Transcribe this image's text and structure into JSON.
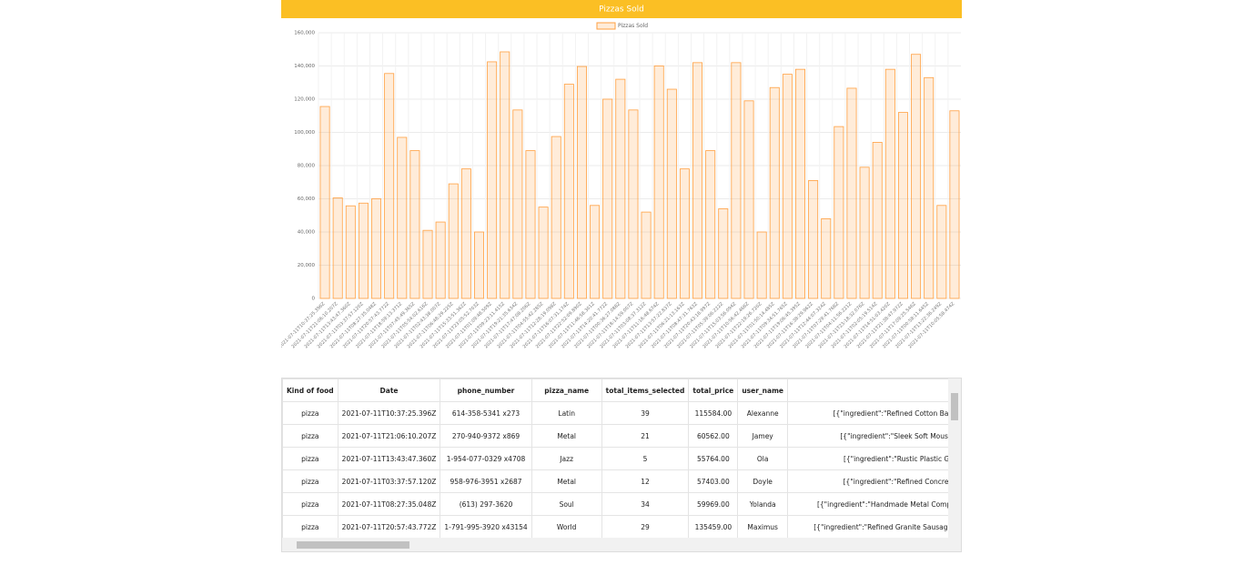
{
  "chart_data": {
    "type": "bar",
    "title": "Pizzas Sold",
    "legend": "Pizzas Sold",
    "color": "rgba(255,159,64,0.2)",
    "border_color": "rgb(255,159,64)",
    "legend_position": "top",
    "grid": true,
    "categories": [
      "2021-07-11T10:37:25.396Z",
      "2021-07-11T21:06:10.207Z",
      "2021-07-11T13:43:47.360Z",
      "2021-07-11T03:37:57.120Z",
      "2021-07-11T08:27:35.048Z",
      "2021-07-11T20:57:43.772Z",
      "2021-07-11T18:59:13.371Z",
      "2021-07-11T07:45:49.365Z",
      "2021-07-11T05:54:02.616Z",
      "2021-07-11T02:43:38.007Z",
      "2021-07-11T06:48:29.225Z",
      "2021-07-11T15:33:51.362Z",
      "2021-07-11T23:05:52.703Z",
      "2021-07-11T01:09:48.509Z",
      "2021-07-11T09:23:11.415Z",
      "2021-07-11T19:21:35.634Z",
      "2021-07-11T17:47:08.206Z",
      "2021-07-11T04:55:42.285Z",
      "2021-07-11T12:28:19.098Z",
      "2021-07-11T16:07:31.174Z",
      "2021-07-11T22:52:09.890Z",
      "2021-07-11T11:46:58.301Z",
      "2021-07-11T14:20:41.772Z",
      "2021-07-11T00:36:27.088Z",
      "2021-07-11T18:14:59.007Z",
      "2021-07-11T03:08:37.312Z",
      "2021-07-11T11:16:48.674Z",
      "2021-07-11T13:57:22.837Z",
      "2021-07-11T06:21:13.163Z",
      "2021-07-11T08:47:31.763Z",
      "2021-07-11T20:43:18.997Z",
      "2021-07-11T05:39:06.222Z",
      "2021-07-11T15:03:56.094Z",
      "2021-07-11T10:56:42.466Z",
      "2021-07-11T22:19:26.720Z",
      "2021-07-11T01:50:14.485Z",
      "2021-07-11T09:34:51.765Z",
      "2021-07-11T19:06:45.395Z",
      "2021-07-11T16:38:29.962Z",
      "2021-07-11T12:44:07.324Z",
      "2021-07-11T07:29:41.768Z",
      "2021-07-11T04:11:56.221Z",
      "2021-07-11T23:18:32.076Z",
      "2021-07-11T02:05:19.514Z",
      "2021-07-11T14:51:03.420Z",
      "2021-07-11T21:38:47.972Z",
      "2021-07-11T17:09:25.546Z",
      "2021-07-11T00:58:11.645Z",
      "2021-07-11T13:22:36.249Z",
      "2021-07-11T10:05:58.474Z"
    ],
    "values": [
      115584,
      60562,
      55764,
      57403,
      59969,
      135459,
      97000,
      89000,
      41000,
      46000,
      69000,
      78000,
      40000,
      142500,
      148500,
      113500,
      89000,
      55000,
      97500,
      129000,
      139700,
      56000,
      120000,
      132000,
      113500,
      52000,
      140000,
      126000,
      78000,
      142000,
      89000,
      54000,
      142000,
      119000,
      40000,
      127000,
      135000,
      138000,
      71000,
      48000,
      103500,
      126600,
      79000,
      94000,
      138000,
      112000,
      147000,
      133000,
      56000,
      113000
    ],
    "ylim": [
      0,
      160000
    ],
    "yticks": [
      0,
      {
        "value": 20000,
        "label": "20,000"
      },
      {
        "value": 40000,
        "label": "40,000"
      },
      {
        "value": 60000,
        "label": "60,000"
      },
      {
        "value": 80000,
        "label": "80,000"
      },
      {
        "value": 100000,
        "label": "100,000"
      },
      {
        "value": 120000,
        "label": "120,000"
      },
      {
        "value": 140000,
        "label": "140,000"
      },
      {
        "value": 160000,
        "label": "160,000"
      }
    ]
  },
  "table": {
    "columns": [
      "Kind of food",
      "Date",
      "phone_number",
      "pizza_name",
      "total_items_selected",
      "total_price",
      "user_name"
    ],
    "rows": [
      [
        "pizza",
        "2021-07-11T10:37:25.396Z",
        "614-358-5341 x273",
        "Latin",
        "39",
        "115584.00",
        "Alexanne",
        "[{\"ingredient\":\"Refined Cotton Ball\""
      ],
      [
        "pizza",
        "2021-07-11T21:06:10.207Z",
        "270-940-9372 x869",
        "Metal",
        "21",
        "60562.00",
        "Jamey",
        "[{\"ingredient\":\"Sleek Soft Mouse\""
      ],
      [
        "pizza",
        "2021-07-11T13:43:47.360Z",
        "1-954-077-0329 x4708",
        "Jazz",
        "5",
        "55764.00",
        "Ola",
        "[{\"ingredient\":\"Rustic Plastic Glo"
      ],
      [
        "pizza",
        "2021-07-11T03:37:57.120Z",
        "958-976-3951 x2687",
        "Metal",
        "12",
        "57403.00",
        "Doyle",
        "[{\"ingredient\":\"Refined Concrete"
      ],
      [
        "pizza",
        "2021-07-11T08:27:35.048Z",
        "(613) 297-3620",
        "Soul",
        "34",
        "59969.00",
        "Yolanda",
        "[{\"ingredient\":\"Handmade Metal Compu"
      ],
      [
        "pizza",
        "2021-07-11T20:57:43.772Z",
        "1-791-995-3920 x43154",
        "World",
        "29",
        "135459.00",
        "Maximus",
        "[{\"ingredient\":\"Refined Granite Sausages"
      ]
    ]
  }
}
